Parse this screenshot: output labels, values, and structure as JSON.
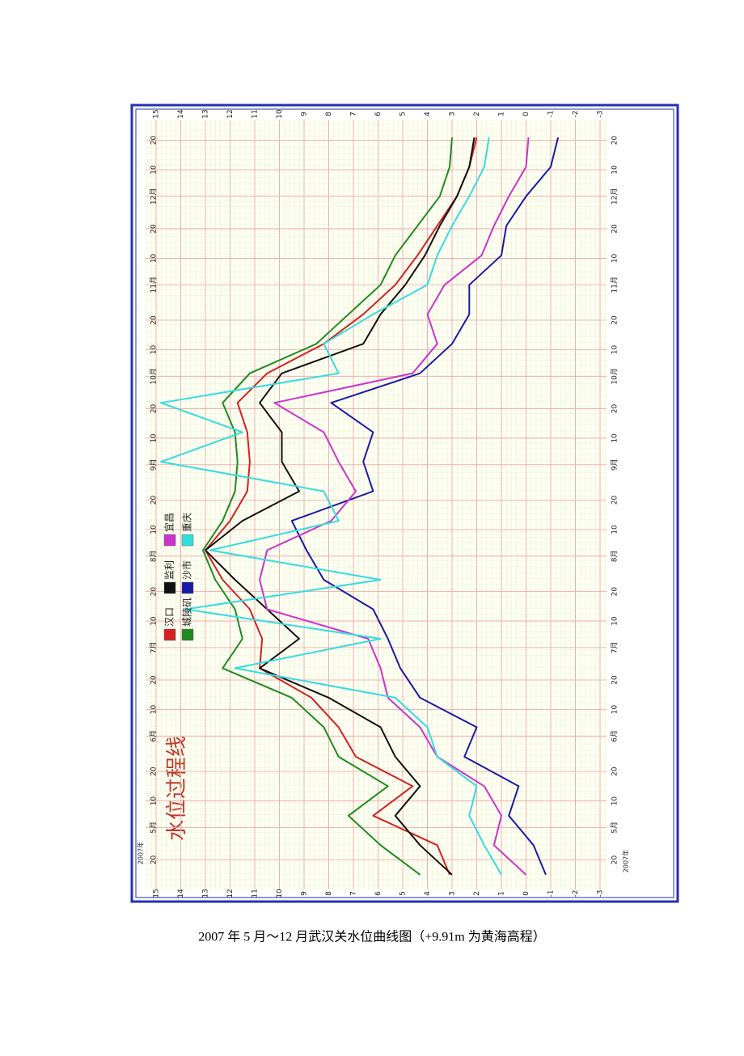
{
  "chart_data": {
    "type": "line",
    "title": "水位过程线",
    "year_label": "2007年",
    "x": [
      105,
      115,
      125,
      135,
      145,
      155,
      165,
      175,
      185,
      195,
      205,
      215,
      225,
      235,
      245,
      255,
      265,
      275,
      285,
      295,
      305,
      315,
      325,
      335,
      345,
      355
    ],
    "series": [
      {
        "name": "汉口",
        "color": "#d42020",
        "values": [
          3.1,
          3.6,
          6.2,
          4.6,
          6.9,
          7.6,
          8.7,
          10.8,
          10.7,
          11.2,
          12.3,
          13.0,
          12.0,
          11.3,
          11.2,
          11.3,
          11.7,
          10.5,
          8.2,
          6.6,
          5.3,
          4.4,
          3.6,
          2.8,
          2.3,
          2.0
        ]
      },
      {
        "name": "城陵矶",
        "color": "#1f8a1f",
        "values": [
          4.3,
          5.9,
          7.2,
          5.6,
          7.6,
          8.2,
          9.5,
          12.3,
          11.5,
          11.8,
          12.6,
          13.1,
          12.3,
          11.8,
          11.7,
          11.8,
          12.3,
          11.2,
          8.5,
          7.2,
          5.9,
          5.3,
          4.4,
          3.5,
          3.1,
          3.0
        ]
      },
      {
        "name": "监利",
        "color": "#111111",
        "values": [
          3.0,
          4.3,
          5.3,
          4.3,
          5.3,
          5.9,
          8.0,
          10.8,
          9.2,
          10.5,
          11.8,
          13.0,
          11.5,
          9.2,
          9.9,
          9.9,
          10.8,
          9.9,
          6.6,
          5.9,
          4.9,
          4.1,
          3.5,
          2.8,
          2.3,
          2.1
        ]
      },
      {
        "name": "沙市",
        "color": "#1a1aa8",
        "values": [
          -0.8,
          -0.3,
          0.7,
          0.3,
          2.5,
          2.0,
          4.3,
          5.1,
          5.6,
          6.2,
          8.2,
          8.9,
          9.5,
          6.2,
          6.6,
          6.2,
          7.9,
          4.3,
          3.0,
          2.3,
          2.3,
          1.0,
          0.8,
          0.0,
          -1.0,
          -1.3
        ]
      },
      {
        "name": "宜昌",
        "color": "#cc33cc",
        "values": [
          0.0,
          1.3,
          1.0,
          1.7,
          3.6,
          4.3,
          5.6,
          5.9,
          6.4,
          10.5,
          10.8,
          10.5,
          7.9,
          6.9,
          7.6,
          8.2,
          10.2,
          4.6,
          3.6,
          4.0,
          3.3,
          1.8,
          1.3,
          0.7,
          0.0,
          -0.1
        ]
      },
      {
        "name": "重庆",
        "color": "#33dddd",
        "values": [
          1.0,
          1.7,
          2.3,
          2.0,
          3.6,
          4.0,
          5.3,
          11.8,
          5.9,
          13.8,
          5.9,
          12.8,
          7.6,
          8.2,
          14.8,
          11.5,
          14.8,
          7.6,
          8.2,
          6.2,
          4.0,
          3.6,
          3.0,
          2.3,
          1.7,
          1.5
        ]
      }
    ],
    "xlim": [
      100,
      361
    ],
    "xticks": [
      {
        "value": 110,
        "label": "20"
      },
      {
        "value": 121,
        "label": "5月"
      },
      {
        "value": 130,
        "label": "10"
      },
      {
        "value": 140,
        "label": "20"
      },
      {
        "value": 152,
        "label": "6月"
      },
      {
        "value": 161,
        "label": "10"
      },
      {
        "value": 171,
        "label": "20"
      },
      {
        "value": 182,
        "label": "7月"
      },
      {
        "value": 191,
        "label": "10"
      },
      {
        "value": 201,
        "label": "20"
      },
      {
        "value": 213,
        "label": "8月"
      },
      {
        "value": 222,
        "label": "10"
      },
      {
        "value": 232,
        "label": "20"
      },
      {
        "value": 244,
        "label": "9月"
      },
      {
        "value": 253,
        "label": "10"
      },
      {
        "value": 263,
        "label": "20"
      },
      {
        "value": 274,
        "label": "10月"
      },
      {
        "value": 283,
        "label": "10"
      },
      {
        "value": 293,
        "label": "20"
      },
      {
        "value": 305,
        "label": "11月"
      },
      {
        "value": 314,
        "label": "10"
      },
      {
        "value": 324,
        "label": "20"
      },
      {
        "value": 335,
        "label": "12月"
      },
      {
        "value": 344,
        "label": "10"
      },
      {
        "value": 354,
        "label": "20"
      }
    ],
    "ylim": [
      -3,
      15
    ],
    "yticks": [
      -3,
      -2,
      -1,
      0,
      1,
      2,
      3,
      4,
      5,
      6,
      7,
      8,
      9,
      10,
      11,
      12,
      13,
      14,
      15
    ],
    "grid": true
  },
  "caption": "2007 年 5 月～12 月武汉关水位曲线图（+9.91m 为黄海高程）"
}
